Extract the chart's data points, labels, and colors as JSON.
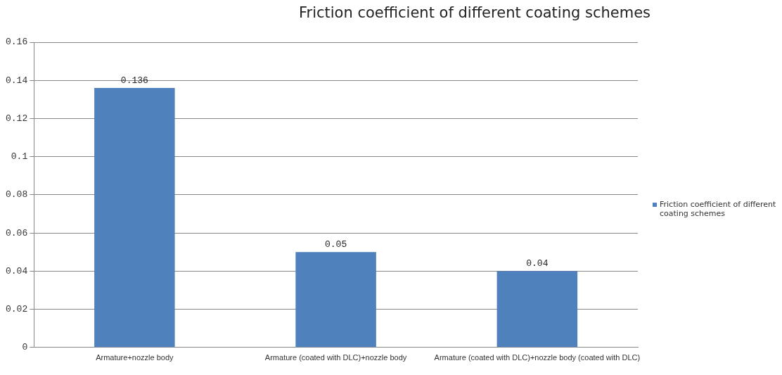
{
  "chart_data": {
    "type": "bar",
    "title": "Friction coefficient of different coating schemes",
    "categories": [
      "Armature+nozzle body",
      "Armature (coated with DLC)+nozzle body",
      "Armature (coated with DLC)+nozzle body (coated with DLC)"
    ],
    "series": [
      {
        "name": "Friction coefficient of different coating schemes",
        "color": "#4f81bd",
        "values": [
          0.136,
          0.05,
          0.04
        ]
      }
    ],
    "ylim": [
      0,
      0.16
    ],
    "yticks": [
      0,
      0.02,
      0.04,
      0.06,
      0.08,
      0.1,
      0.12,
      0.14,
      0.16
    ],
    "grid": "y",
    "legend": "right",
    "data_labels": true
  }
}
